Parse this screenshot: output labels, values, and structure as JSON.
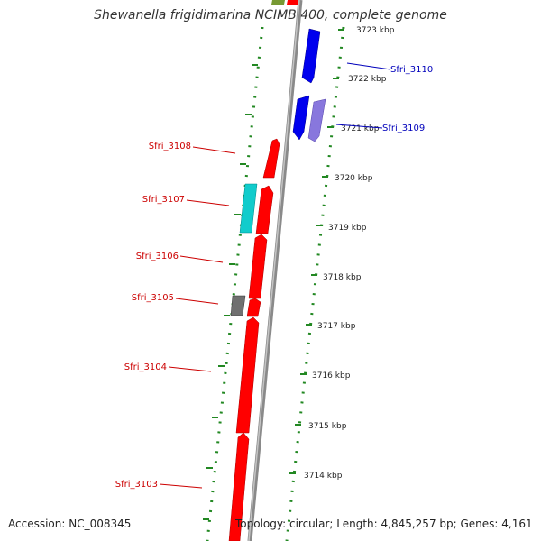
{
  "title": "Shewanella frigidimarina NCIMB 400, complete genome",
  "footer": {
    "accession": "Accession: NC_008345",
    "summary": "Topology: circular; Length: 4,845,257 bp; Genes: 4,161"
  },
  "colors": {
    "red_gene": "#ff0000",
    "blue_gene": "#0000ee",
    "purple_gene": "#8877dd",
    "cyan_gene": "#11cccc",
    "gray_gene": "#707070",
    "olive_gene": "#779933",
    "backbone": "#909090",
    "ruler": "#228822",
    "red_label": "#cc0000",
    "blue_label": "#0000bb"
  },
  "ruler": {
    "unit": "kbp",
    "ticks": [
      "3723 kbp",
      "3722 kbp",
      "3721 kbp",
      "3720 kbp",
      "3719 kbp",
      "3718 kbp",
      "3717 kbp",
      "3716 kbp",
      "3715 kbp",
      "3714 kbp"
    ]
  },
  "labels": {
    "left": [
      "Sfri_3108",
      "Sfri_3107",
      "Sfri_3106",
      "Sfri_3105",
      "Sfri_3104",
      "Sfri_3103"
    ],
    "right": [
      "Sfri_3110",
      "Sfri_3109"
    ]
  }
}
